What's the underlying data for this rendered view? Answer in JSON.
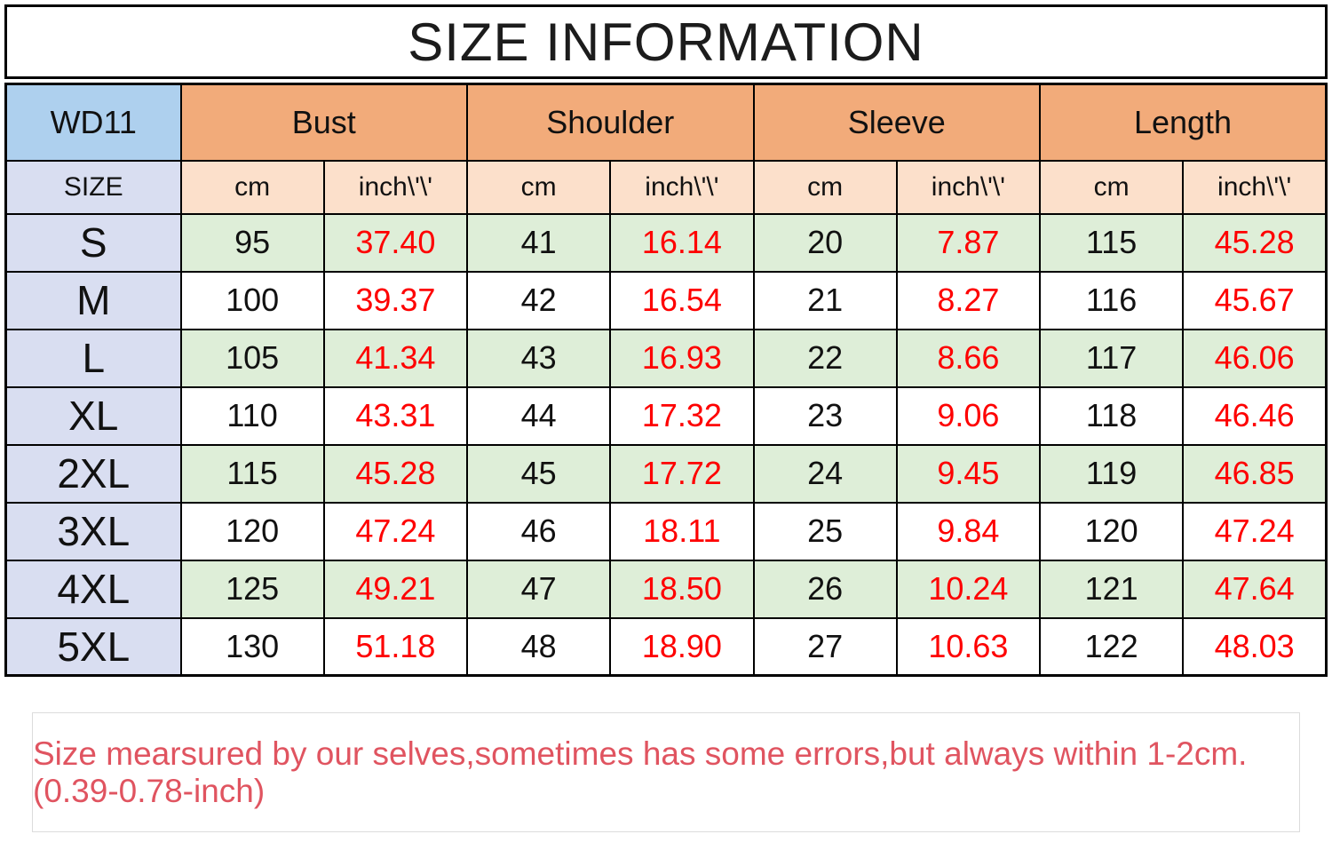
{
  "title": "SIZE INFORMATION",
  "table": {
    "model": "WD11",
    "size_label": "SIZE",
    "unit_cm": "cm",
    "unit_inch": "inch\\'\\'",
    "groups": [
      {
        "label": "Bust"
      },
      {
        "label": "Shoulder"
      },
      {
        "label": "Sleeve"
      },
      {
        "label": "Length"
      }
    ],
    "rows": [
      {
        "size": "S",
        "values": [
          "95",
          "37.40",
          "41",
          "16.14",
          "20",
          "7.87",
          "115",
          "45.28"
        ]
      },
      {
        "size": "M",
        "values": [
          "100",
          "39.37",
          "42",
          "16.54",
          "21",
          "8.27",
          "116",
          "45.67"
        ]
      },
      {
        "size": "L",
        "values": [
          "105",
          "41.34",
          "43",
          "16.93",
          "22",
          "8.66",
          "117",
          "46.06"
        ]
      },
      {
        "size": "XL",
        "values": [
          "110",
          "43.31",
          "44",
          "17.32",
          "23",
          "9.06",
          "118",
          "46.46"
        ]
      },
      {
        "size": "2XL",
        "values": [
          "115",
          "45.28",
          "45",
          "17.72",
          "24",
          "9.45",
          "119",
          "46.85"
        ]
      },
      {
        "size": "3XL",
        "values": [
          "120",
          "47.24",
          "46",
          "18.11",
          "25",
          "9.84",
          "120",
          "47.24"
        ]
      },
      {
        "size": "4XL",
        "values": [
          "125",
          "49.21",
          "47",
          "18.50",
          "26",
          "10.24",
          "121",
          "47.64"
        ]
      },
      {
        "size": "5XL",
        "values": [
          "130",
          "51.18",
          "48",
          "18.90",
          "27",
          "10.63",
          "122",
          "48.03"
        ]
      }
    ]
  },
  "footer": {
    "note": "Size mearsured by our selves,sometimes has some errors,but always within 1-2cm.  (0.39-0.78-inch)"
  },
  "colors": {
    "model_header_bg": "#aed0ee",
    "group_header_bg": "#f2ab7a",
    "unit_header_bg": "#fce0cb",
    "size_column_bg": "#d9def1",
    "tint_row_bg": "#deeed8",
    "plain_row_bg": "#ffffff",
    "inch_value_text": "#fe0000",
    "cm_value_text": "#111111",
    "note_text": "#e05460",
    "table_border": "#000000",
    "note_border": "#dcdcdc"
  },
  "chart_data": {
    "type": "table",
    "title": "SIZE INFORMATION",
    "model": "WD11",
    "columns": [
      "SIZE",
      "Bust cm",
      "Bust inch",
      "Shoulder cm",
      "Shoulder inch",
      "Sleeve cm",
      "Sleeve inch",
      "Length cm",
      "Length inch"
    ],
    "rows": [
      [
        "S",
        95,
        37.4,
        41,
        16.14,
        20,
        7.87,
        115,
        45.28
      ],
      [
        "M",
        100,
        39.37,
        42,
        16.54,
        21,
        8.27,
        116,
        45.67
      ],
      [
        "L",
        105,
        41.34,
        43,
        16.93,
        22,
        8.66,
        117,
        46.06
      ],
      [
        "XL",
        110,
        43.31,
        44,
        17.32,
        23,
        9.06,
        118,
        46.46
      ],
      [
        "2XL",
        115,
        45.28,
        45,
        17.72,
        24,
        9.45,
        119,
        46.85
      ],
      [
        "3XL",
        120,
        47.24,
        46,
        18.11,
        25,
        9.84,
        120,
        47.24
      ],
      [
        "4XL",
        125,
        49.21,
        47,
        18.5,
        26,
        10.24,
        121,
        47.64
      ],
      [
        "5XL",
        130,
        51.18,
        48,
        18.9,
        27,
        10.63,
        122,
        48.03
      ]
    ],
    "note": "Size mearsured by our selves,sometimes has some errors,but always within 1-2cm.  (0.39-0.78-inch)"
  }
}
